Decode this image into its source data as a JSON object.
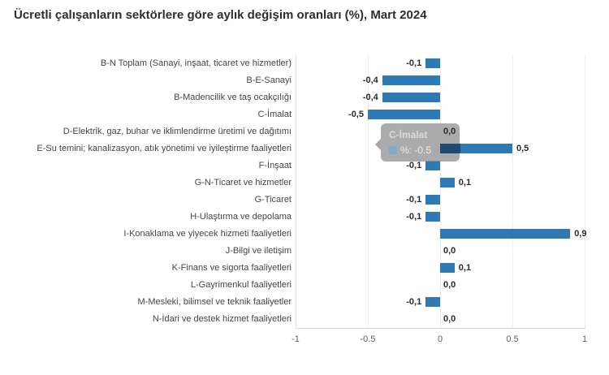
{
  "chart_data": {
    "type": "bar",
    "orientation": "horizontal",
    "title": "Ücretli çalışanların sektörlere göre aylık değişim oranları (%), Mart 2024",
    "categories": [
      "B-N Toplam (Sanayi, inşaat, ticaret ve hizmetler)",
      "B-E-Sanayi",
      "B-Madencilik ve taş ocakçılığı",
      "C-İmalat",
      "D-Elektrik, gaz, buhar ve iklimlendirme üretimi ve dağıtımı",
      "E-Su temini; kanalizasyon, atık yönetimi ve iyileştirme faaliyetleri",
      "F-İnşaat",
      "G-N-Ticaret ve hizmetler",
      "G-Ticaret",
      "H-Ulaştırma ve depolama",
      "I-Konaklama ve yiyecek hizmeti faaliyetleri",
      "J-Bilgi ve iletişim",
      "K-Finans ve sigorta faaliyetleri",
      "L-Gayrimenkul faaliyetleri",
      "M-Mesleki, bilimsel ve teknik faaliyetler",
      "N-İdari ve destek hizmet faaliyetleri"
    ],
    "series": [
      {
        "name": "%",
        "values": [
          -0.1,
          -0.4,
          -0.4,
          -0.5,
          0,
          0.5,
          -0.1,
          0.1,
          -0.1,
          -0.1,
          0.9,
          0,
          0.1,
          0,
          -0.1,
          0
        ],
        "labels": [
          "-0,1",
          "-0,4",
          "-0,4",
          "-0,5",
          "0,0",
          "0,5",
          "-0,1",
          "0,1",
          "-0,1",
          "-0,1",
          "0,9",
          "0,0",
          "0,1",
          "0,0",
          "-0,1",
          "0,0"
        ]
      }
    ],
    "xlim": [
      -1,
      1
    ],
    "xticks": [
      -1,
      -0.5,
      0,
      0.5,
      1
    ],
    "xtick_labels": [
      "-1",
      "-0.5",
      "0",
      "0.5",
      "1"
    ],
    "grid": true,
    "legend_position": "none",
    "bar_color": "#2f79b5"
  },
  "tooltip": {
    "header": "C-İmalat",
    "series_name": "%",
    "value": "-0.5",
    "text": "%: -0.5",
    "marker_color": "#7fa9d1"
  },
  "colors": {
    "bar": "#2f79b5",
    "bar_under_tooltip": "#1d4b74",
    "tooltip_background": "rgba(150,150,150,0.80)",
    "title_text": "#2d2d2d",
    "axis_text": "#5f5f5f"
  }
}
